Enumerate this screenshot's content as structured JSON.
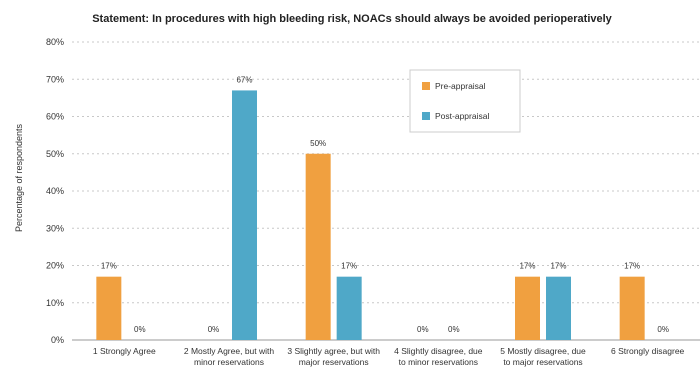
{
  "chart_data": {
    "type": "bar",
    "title": "Statement: In procedures with high bleeding risk, NOACs should always be avoided perioperatively",
    "ylabel": "Percentage of respondents",
    "xlabel": "",
    "ylim": [
      0,
      80
    ],
    "yticks": [
      "0%",
      "10%",
      "20%",
      "30%",
      "40%",
      "50%",
      "60%",
      "70%",
      "80%"
    ],
    "ytick_values": [
      0,
      10,
      20,
      30,
      40,
      50,
      60,
      70,
      80
    ],
    "grid": true,
    "legend_position": "top-right",
    "categories": [
      [
        "1 Strongly Agree"
      ],
      [
        "2 Mostly Agree, but with",
        "minor reservations"
      ],
      [
        "3 Slightly agree, but with",
        "major reservations"
      ],
      [
        "4 Slightly disagree, due",
        "to minor reservations"
      ],
      [
        "5 Mostly disagree, due",
        "to major reservations"
      ],
      [
        "6 Strongly disagree"
      ]
    ],
    "series": [
      {
        "name": "Pre-appraisal",
        "color": "#f0a040",
        "values": [
          17,
          0,
          50,
          0,
          17,
          17
        ],
        "labels": [
          "17%",
          "0%",
          "50%",
          "0%",
          "17%",
          "17%"
        ]
      },
      {
        "name": "Post-appraisal",
        "color": "#4fa8c8",
        "values": [
          0,
          67,
          17,
          0,
          17,
          0
        ],
        "labels": [
          "0%",
          "67%",
          "17%",
          "0%",
          "17%",
          "0%"
        ]
      }
    ]
  }
}
